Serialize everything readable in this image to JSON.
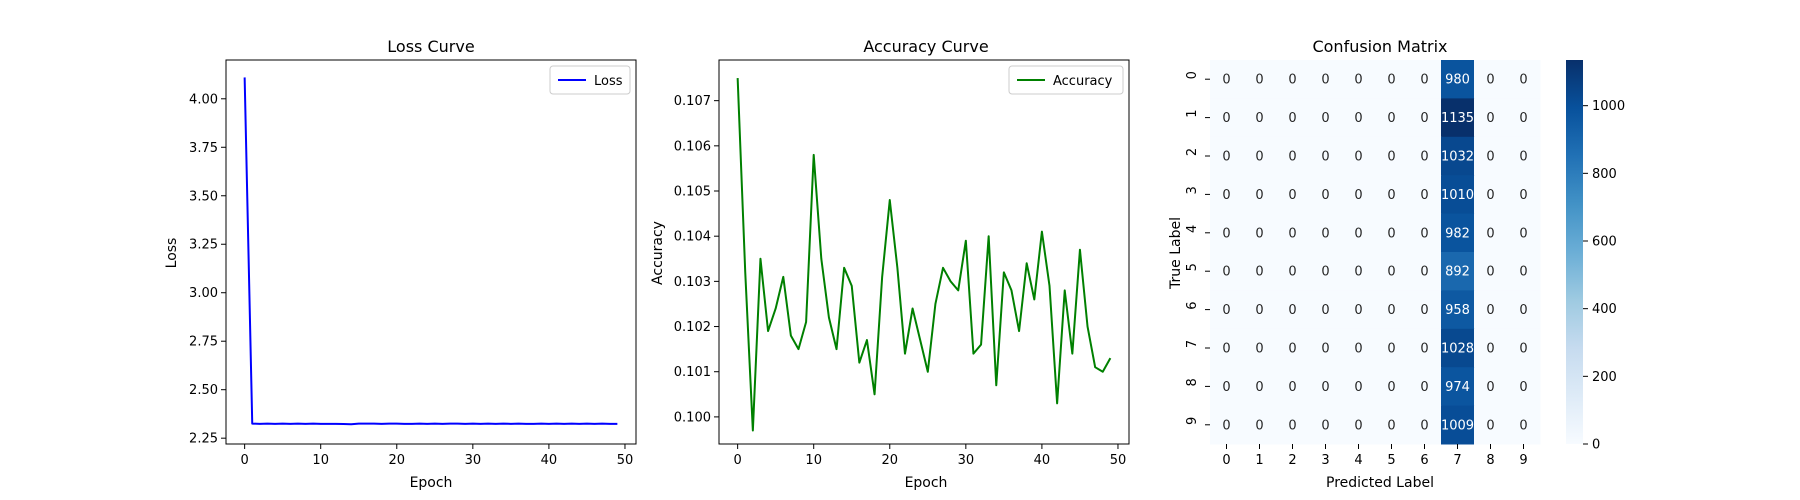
{
  "figure": {
    "background": "#ffffff"
  },
  "chart_data": [
    {
      "type": "line",
      "title": "Loss Curve",
      "xlabel": "Epoch",
      "ylabel": "Loss",
      "xlim": [
        -2.45,
        51.45
      ],
      "ylim": [
        2.22,
        4.2
      ],
      "xticks": [
        0,
        10,
        20,
        30,
        40,
        50
      ],
      "yticks": [
        2.25,
        2.5,
        2.75,
        3.0,
        3.25,
        3.5,
        3.75,
        4.0
      ],
      "ytick_labels": [
        "2.25",
        "2.50",
        "2.75",
        "3.00",
        "3.25",
        "3.50",
        "3.75",
        "4.00"
      ],
      "legend": "top-right",
      "grid": false,
      "series": [
        {
          "name": "Loss",
          "color": "#0000ff",
          "x": [
            0,
            1,
            2,
            3,
            4,
            5,
            6,
            7,
            8,
            9,
            10,
            11,
            12,
            13,
            14,
            15,
            16,
            17,
            18,
            19,
            20,
            21,
            22,
            23,
            24,
            25,
            26,
            27,
            28,
            29,
            30,
            31,
            32,
            33,
            34,
            35,
            36,
            37,
            38,
            39,
            40,
            41,
            42,
            43,
            44,
            45,
            46,
            47,
            48,
            49
          ],
          "y": [
            4.11,
            2.325,
            2.324,
            2.325,
            2.324,
            2.325,
            2.324,
            2.325,
            2.324,
            2.325,
            2.324,
            2.324,
            2.324,
            2.323,
            2.322,
            2.325,
            2.325,
            2.325,
            2.324,
            2.325,
            2.325,
            2.324,
            2.324,
            2.325,
            2.324,
            2.325,
            2.324,
            2.325,
            2.325,
            2.324,
            2.325,
            2.324,
            2.325,
            2.324,
            2.325,
            2.324,
            2.325,
            2.324,
            2.324,
            2.325,
            2.324,
            2.325,
            2.324,
            2.325,
            2.324,
            2.325,
            2.324,
            2.325,
            2.324,
            2.324
          ]
        }
      ]
    },
    {
      "type": "line",
      "title": "Accuracy Curve",
      "xlabel": "Epoch",
      "ylabel": "Accuracy",
      "xlim": [
        -2.45,
        51.45
      ],
      "ylim": [
        0.0994,
        0.1079
      ],
      "xticks": [
        0,
        10,
        20,
        30,
        40,
        50
      ],
      "yticks": [
        0.1,
        0.101,
        0.102,
        0.103,
        0.104,
        0.105,
        0.106,
        0.107
      ],
      "ytick_labels": [
        "0.100",
        "0.101",
        "0.102",
        "0.103",
        "0.104",
        "0.105",
        "0.106",
        "0.107"
      ],
      "legend": "top-right",
      "grid": false,
      "series": [
        {
          "name": "Accuracy",
          "color": "#008000",
          "x": [
            0,
            1,
            2,
            3,
            4,
            5,
            6,
            7,
            8,
            9,
            10,
            11,
            12,
            13,
            14,
            15,
            16,
            17,
            18,
            19,
            20,
            21,
            22,
            23,
            24,
            25,
            26,
            27,
            28,
            29,
            30,
            31,
            32,
            33,
            34,
            35,
            36,
            37,
            38,
            39,
            40,
            41,
            42,
            43,
            44,
            45,
            46,
            47,
            48,
            49
          ],
          "y": [
            0.1075,
            0.1032,
            0.0997,
            0.1035,
            0.1019,
            0.1024,
            0.1031,
            0.1018,
            0.1015,
            0.1021,
            0.1058,
            0.1035,
            0.1022,
            0.1015,
            0.1033,
            0.1029,
            0.1012,
            0.1017,
            0.1005,
            0.1031,
            0.1048,
            0.1033,
            0.1014,
            0.1024,
            0.1017,
            0.101,
            0.1025,
            0.1033,
            0.103,
            0.1028,
            0.1039,
            0.1014,
            0.1016,
            0.104,
            0.1007,
            0.1032,
            0.1028,
            0.1019,
            0.1034,
            0.1026,
            0.1041,
            0.1029,
            0.1003,
            0.1028,
            0.1014,
            0.1037,
            0.102,
            0.1011,
            0.101,
            0.1013
          ]
        }
      ]
    },
    {
      "type": "heatmap",
      "title": "Confusion Matrix",
      "xlabel": "Predicted Label",
      "ylabel": "True Label",
      "x_categories": [
        "0",
        "1",
        "2",
        "3",
        "4",
        "5",
        "6",
        "7",
        "8",
        "9"
      ],
      "y_categories": [
        "0",
        "1",
        "2",
        "3",
        "4",
        "5",
        "6",
        "7",
        "8",
        "9"
      ],
      "colormap": "Blues",
      "colorscale": [
        "#f7fbff",
        "#deebf7",
        "#c6dbef",
        "#9ecae1",
        "#6baed6",
        "#4292c6",
        "#2171b5",
        "#08519c",
        "#08306b"
      ],
      "vmin": 0,
      "vmax": 1135,
      "colorbar_ticks": [
        0,
        200,
        400,
        600,
        800,
        1000
      ],
      "values": [
        [
          0,
          0,
          0,
          0,
          0,
          0,
          0,
          980,
          0,
          0
        ],
        [
          0,
          0,
          0,
          0,
          0,
          0,
          0,
          1135,
          0,
          0
        ],
        [
          0,
          0,
          0,
          0,
          0,
          0,
          0,
          1032,
          0,
          0
        ],
        [
          0,
          0,
          0,
          0,
          0,
          0,
          0,
          1010,
          0,
          0
        ],
        [
          0,
          0,
          0,
          0,
          0,
          0,
          0,
          982,
          0,
          0
        ],
        [
          0,
          0,
          0,
          0,
          0,
          0,
          0,
          892,
          0,
          0
        ],
        [
          0,
          0,
          0,
          0,
          0,
          0,
          0,
          958,
          0,
          0
        ],
        [
          0,
          0,
          0,
          0,
          0,
          0,
          0,
          1028,
          0,
          0
        ],
        [
          0,
          0,
          0,
          0,
          0,
          0,
          0,
          974,
          0,
          0
        ],
        [
          0,
          0,
          0,
          0,
          0,
          0,
          0,
          1009,
          0,
          0
        ]
      ]
    }
  ]
}
